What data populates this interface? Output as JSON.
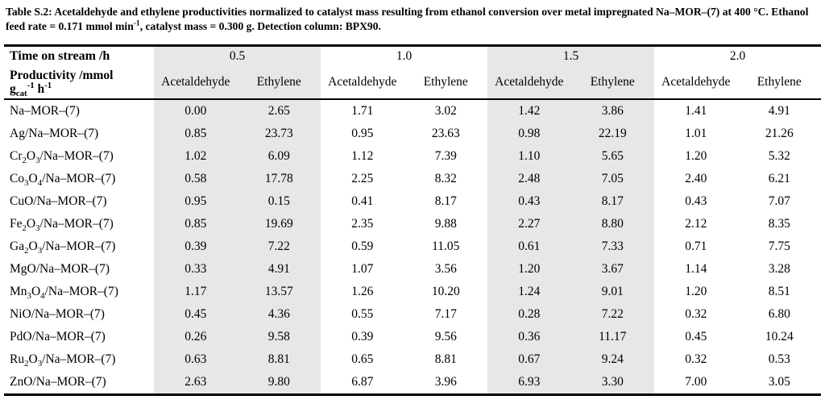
{
  "caption_parts": [
    {
      "t": "Table S.2: Acetaldehyde and ethylene productivities normalized to catalyst mass resulting from ethanol conversion over metal impregnated Na–MOR–(7) at 400 °C. Ethanol feed rate = 0.171 mmol min"
    },
    {
      "t": "-1",
      "sup": true
    },
    {
      "t": ", catalyst mass = 0.300 g. Detection column: BPX90."
    }
  ],
  "table": {
    "shade_color": "#e7e7e7",
    "corner": {
      "row1": "Time on stream /h",
      "row2_line1": "Productivity /mmol",
      "row2_line2_parts": [
        {
          "t": "g"
        },
        {
          "t": "cat",
          "sub": true
        },
        {
          "t": "-1",
          "sup": true
        },
        {
          "t": " h"
        },
        {
          "t": "-1",
          "sup": true
        }
      ]
    },
    "col_groups": [
      {
        "time": "0.5",
        "shaded": true
      },
      {
        "time": "1.0",
        "shaded": false
      },
      {
        "time": "1.5",
        "shaded": true
      },
      {
        "time": "2.0",
        "shaded": false
      }
    ],
    "sub_headers": [
      "Acetaldehyde",
      "Ethylene"
    ],
    "rows": [
      {
        "label_parts": [
          {
            "t": "Na–MOR–(7)"
          }
        ],
        "values": [
          "0.00",
          "2.65",
          "1.71",
          "3.02",
          "1.42",
          "3.86",
          "1.41",
          "4.91"
        ]
      },
      {
        "label_parts": [
          {
            "t": "Ag/Na–MOR–(7)"
          }
        ],
        "values": [
          "0.85",
          "23.73",
          "0.95",
          "23.63",
          "0.98",
          "22.19",
          "1.01",
          "21.26"
        ]
      },
      {
        "label_parts": [
          {
            "t": "Cr"
          },
          {
            "t": "2",
            "sub": true
          },
          {
            "t": "O"
          },
          {
            "t": "3",
            "sub": true
          },
          {
            "t": "/Na–MOR–(7)"
          }
        ],
        "values": [
          "1.02",
          "6.09",
          "1.12",
          "7.39",
          "1.10",
          "5.65",
          "1.20",
          "5.32"
        ]
      },
      {
        "label_parts": [
          {
            "t": "Co"
          },
          {
            "t": "3",
            "sub": true
          },
          {
            "t": "O"
          },
          {
            "t": "4",
            "sub": true
          },
          {
            "t": "/Na–MOR–(7)"
          }
        ],
        "values": [
          "0.58",
          "17.78",
          "2.25",
          "8.32",
          "2.48",
          "7.05",
          "2.40",
          "6.21"
        ]
      },
      {
        "label_parts": [
          {
            "t": "CuO/Na–MOR–(7)"
          }
        ],
        "values": [
          "0.95",
          "0.15",
          "0.41",
          "8.17",
          "0.43",
          "8.17",
          "0.43",
          "7.07"
        ]
      },
      {
        "label_parts": [
          {
            "t": "Fe"
          },
          {
            "t": "2",
            "sub": true
          },
          {
            "t": "O"
          },
          {
            "t": "3",
            "sub": true
          },
          {
            "t": "/Na–MOR–(7)"
          }
        ],
        "values": [
          "0.85",
          "19.69",
          "2.35",
          "9.88",
          "2.27",
          "8.80",
          "2.12",
          "8.35"
        ]
      },
      {
        "label_parts": [
          {
            "t": "Ga"
          },
          {
            "t": "2",
            "sub": true
          },
          {
            "t": "O"
          },
          {
            "t": "3",
            "sub": true
          },
          {
            "t": "/Na–MOR–(7)"
          }
        ],
        "values": [
          "0.39",
          "7.22",
          "0.59",
          "11.05",
          "0.61",
          "7.33",
          "0.71",
          "7.75"
        ]
      },
      {
        "label_parts": [
          {
            "t": "MgO/Na–MOR–(7)"
          }
        ],
        "values": [
          "0.33",
          "4.91",
          "1.07",
          "3.56",
          "1.20",
          "3.67",
          "1.14",
          "3.28"
        ]
      },
      {
        "label_parts": [
          {
            "t": "Mn"
          },
          {
            "t": "3",
            "sub": true
          },
          {
            "t": "O"
          },
          {
            "t": "4",
            "sub": true
          },
          {
            "t": "/Na–MOR–(7)"
          }
        ],
        "values": [
          "1.17",
          "13.57",
          "1.26",
          "10.20",
          "1.24",
          "9.01",
          "1.20",
          "8.51"
        ]
      },
      {
        "label_parts": [
          {
            "t": "NiO/Na–MOR–(7)"
          }
        ],
        "values": [
          "0.45",
          "4.36",
          "0.55",
          "7.17",
          "0.28",
          "7.22",
          "0.32",
          "6.80"
        ]
      },
      {
        "label_parts": [
          {
            "t": "PdO/Na–MOR–(7)"
          }
        ],
        "values": [
          "0.26",
          "9.58",
          "0.39",
          "9.56",
          "0.36",
          "11.17",
          "0.45",
          "10.24"
        ]
      },
      {
        "label_parts": [
          {
            "t": "Ru"
          },
          {
            "t": "2",
            "sub": true
          },
          {
            "t": "O"
          },
          {
            "t": "3",
            "sub": true
          },
          {
            "t": "/Na–MOR–(7)"
          }
        ],
        "values": [
          "0.63",
          "8.81",
          "0.65",
          "8.81",
          "0.67",
          "9.24",
          "0.32",
          "0.53"
        ]
      },
      {
        "label_parts": [
          {
            "t": "ZnO/Na–MOR–(7)"
          }
        ],
        "values": [
          "2.63",
          "9.80",
          "6.87",
          "3.96",
          "6.93",
          "3.30",
          "7.00",
          "3.05"
        ]
      }
    ]
  }
}
